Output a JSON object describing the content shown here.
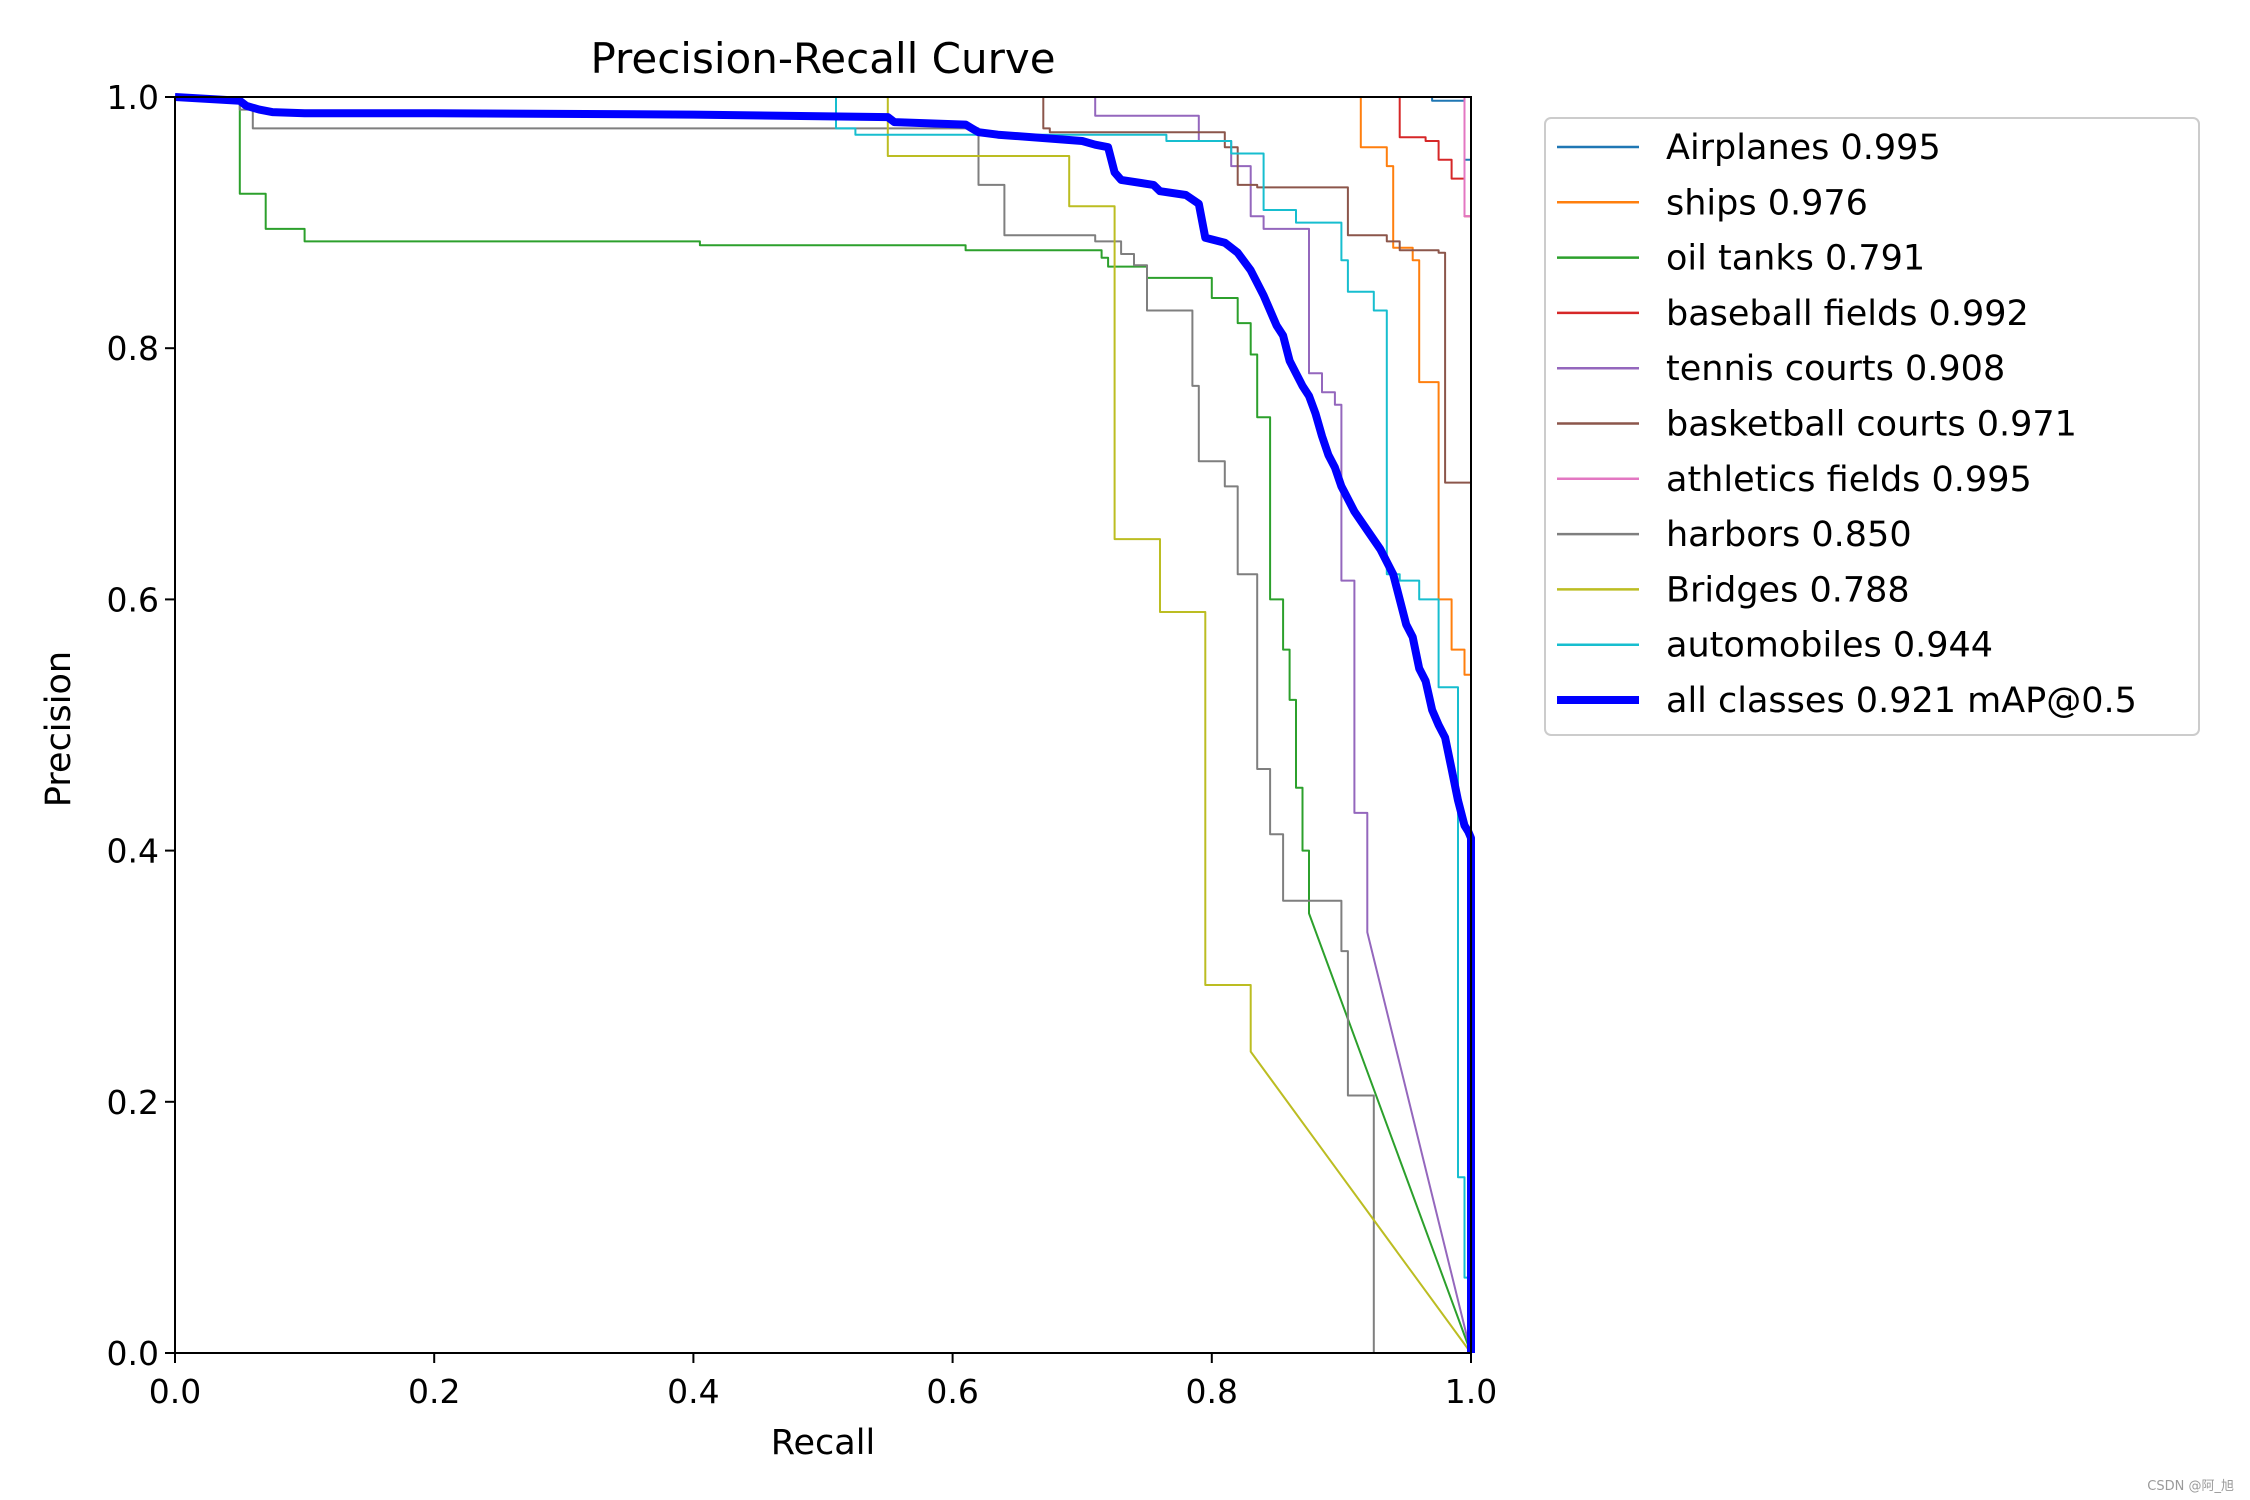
{
  "chart_data": {
    "type": "line",
    "title": "Precision-Recall Curve",
    "xlabel": "Recall",
    "ylabel": "Precision",
    "xlim": [
      0,
      1
    ],
    "ylim": [
      0,
      1
    ],
    "xticks": [
      "0.0",
      "0.2",
      "0.4",
      "0.6",
      "0.8",
      "1.0"
    ],
    "yticks": [
      "0.0",
      "0.2",
      "0.4",
      "0.6",
      "0.8",
      "1.0"
    ],
    "grid": false,
    "legend_position": "outside-right-top",
    "series": [
      {
        "name": "Airplanes",
        "label": "Airplanes 0.995",
        "color": "#1f77b4",
        "emphasis": false,
        "x": [
          0,
          0.97,
          0.97,
          0.995,
          0.995,
          1.0,
          1.0
        ],
        "y": [
          1.0,
          1.0,
          0.997,
          0.997,
          0.95,
          0.95,
          0.0
        ]
      },
      {
        "name": "ships",
        "label": "ships 0.976",
        "color": "#ff7f0e",
        "emphasis": false,
        "x": [
          0,
          0.915,
          0.915,
          0.935,
          0.935,
          0.94,
          0.94,
          0.955,
          0.955,
          0.96,
          0.96,
          0.975,
          0.975,
          0.985,
          0.985,
          0.995,
          0.995,
          1.0,
          1.0
        ],
        "y": [
          1.0,
          1.0,
          0.96,
          0.96,
          0.945,
          0.945,
          0.88,
          0.88,
          0.87,
          0.87,
          0.773,
          0.773,
          0.6,
          0.6,
          0.56,
          0.56,
          0.54,
          0.54,
          0.0
        ]
      },
      {
        "name": "oil tanks",
        "label": "oil tanks 0.791",
        "color": "#2ca02c",
        "emphasis": false,
        "x": [
          0,
          0.05,
          0.05,
          0.07,
          0.07,
          0.1,
          0.1,
          0.405,
          0.405,
          0.61,
          0.61,
          0.715,
          0.715,
          0.72,
          0.72,
          0.75,
          0.75,
          0.8,
          0.8,
          0.82,
          0.82,
          0.83,
          0.83,
          0.835,
          0.835,
          0.845,
          0.845,
          0.855,
          0.855,
          0.86,
          0.86,
          0.865,
          0.865,
          0.87,
          0.87,
          0.875,
          0.875,
          1.0
        ],
        "y": [
          1.0,
          1.0,
          0.923,
          0.923,
          0.895,
          0.895,
          0.885,
          0.885,
          0.882,
          0.882,
          0.878,
          0.878,
          0.872,
          0.872,
          0.865,
          0.865,
          0.856,
          0.856,
          0.84,
          0.84,
          0.82,
          0.82,
          0.795,
          0.795,
          0.745,
          0.745,
          0.6,
          0.6,
          0.56,
          0.56,
          0.52,
          0.52,
          0.45,
          0.45,
          0.4,
          0.4,
          0.35,
          0.0
        ]
      },
      {
        "name": "baseball fields",
        "label": "baseball fields 0.992",
        "color": "#d62728",
        "emphasis": false,
        "x": [
          0,
          0.945,
          0.945,
          0.965,
          0.965,
          0.975,
          0.975,
          0.985,
          0.985,
          0.995,
          0.995,
          1.0,
          1.0
        ],
        "y": [
          1.0,
          1.0,
          0.968,
          0.968,
          0.965,
          0.965,
          0.95,
          0.95,
          0.935,
          0.935,
          0.905,
          0.905,
          0.0
        ]
      },
      {
        "name": "tennis courts",
        "label": "tennis courts 0.908",
        "color": "#9467bd",
        "emphasis": false,
        "x": [
          0,
          0.71,
          0.71,
          0.79,
          0.79,
          0.815,
          0.815,
          0.83,
          0.83,
          0.84,
          0.84,
          0.875,
          0.875,
          0.885,
          0.885,
          0.895,
          0.895,
          0.9,
          0.9,
          0.91,
          0.91,
          0.92,
          0.92,
          1.0
        ],
        "y": [
          1.0,
          1.0,
          0.985,
          0.985,
          0.965,
          0.965,
          0.945,
          0.945,
          0.905,
          0.905,
          0.895,
          0.895,
          0.78,
          0.78,
          0.765,
          0.765,
          0.755,
          0.755,
          0.615,
          0.615,
          0.43,
          0.43,
          0.335,
          0.0
        ]
      },
      {
        "name": "basketball courts",
        "label": "basketball courts 0.971",
        "color": "#8c564b",
        "emphasis": false,
        "x": [
          0,
          0.67,
          0.67,
          0.675,
          0.675,
          0.81,
          0.81,
          0.82,
          0.82,
          0.835,
          0.835,
          0.905,
          0.905,
          0.935,
          0.935,
          0.945,
          0.945,
          0.975,
          0.975,
          0.98,
          0.98,
          1.0,
          1.0
        ],
        "y": [
          1.0,
          1.0,
          0.975,
          0.975,
          0.972,
          0.972,
          0.96,
          0.96,
          0.93,
          0.93,
          0.928,
          0.928,
          0.89,
          0.89,
          0.885,
          0.885,
          0.878,
          0.878,
          0.876,
          0.876,
          0.693,
          0.693,
          0.0
        ]
      },
      {
        "name": "athletics fields",
        "label": "athletics fields 0.995",
        "color": "#e377c2",
        "emphasis": false,
        "x": [
          0,
          0.995,
          0.995,
          1.0,
          1.0
        ],
        "y": [
          1.0,
          1.0,
          0.905,
          0.905,
          0.0
        ]
      },
      {
        "name": "harbors",
        "label": "harbors 0.850",
        "color": "#7f7f7f",
        "emphasis": false,
        "x": [
          0,
          0.05,
          0.05,
          0.06,
          0.06,
          0.62,
          0.62,
          0.64,
          0.64,
          0.71,
          0.71,
          0.73,
          0.73,
          0.74,
          0.74,
          0.75,
          0.75,
          0.785,
          0.785,
          0.79,
          0.79,
          0.81,
          0.81,
          0.82,
          0.82,
          0.835,
          0.835,
          0.845,
          0.845,
          0.855,
          0.855,
          0.9,
          0.9,
          0.905,
          0.905,
          0.925,
          0.925,
          0.935,
          0.935,
          0.94,
          0.94,
          0.955,
          0.955,
          0.95,
          1.0
        ],
        "y": [
          1.0,
          1.0,
          0.99,
          0.99,
          0.975,
          0.975,
          0.93,
          0.93,
          0.89,
          0.89,
          0.885,
          0.885,
          0.875,
          0.875,
          0.866,
          0.866,
          0.83,
          0.83,
          0.77,
          0.77,
          0.71,
          0.71,
          0.69,
          0.69,
          0.62,
          0.62,
          0.465,
          0.465,
          0.413,
          0.413,
          0.36,
          0.36,
          0.32,
          0.32,
          0.205,
          0.205,
          0.0,
          0.0,
          0.0,
          0.0,
          0.0,
          0.0,
          0.0,
          0.0,
          0.0
        ]
      },
      {
        "name": "Bridges",
        "label": "Bridges 0.788",
        "color": "#bcbd22",
        "emphasis": false,
        "x": [
          0,
          0.55,
          0.55,
          0.69,
          0.69,
          0.725,
          0.725,
          0.76,
          0.76,
          0.795,
          0.795,
          0.83,
          0.83,
          1.0
        ],
        "y": [
          1.0,
          1.0,
          0.953,
          0.953,
          0.913,
          0.913,
          0.648,
          0.648,
          0.59,
          0.59,
          0.293,
          0.293,
          0.24,
          0.0
        ]
      },
      {
        "name": "automobiles",
        "label": "automobiles 0.944",
        "color": "#17becf",
        "emphasis": false,
        "x": [
          0,
          0.51,
          0.51,
          0.525,
          0.525,
          0.765,
          0.765,
          0.815,
          0.815,
          0.84,
          0.84,
          0.865,
          0.865,
          0.9,
          0.9,
          0.905,
          0.905,
          0.925,
          0.925,
          0.935,
          0.935,
          0.945,
          0.945,
          0.96,
          0.96,
          0.975,
          0.975,
          0.99,
          0.99,
          0.995,
          0.995,
          1.0,
          1.0
        ],
        "y": [
          1.0,
          1.0,
          0.975,
          0.975,
          0.97,
          0.97,
          0.965,
          0.965,
          0.955,
          0.955,
          0.91,
          0.91,
          0.9,
          0.9,
          0.87,
          0.87,
          0.845,
          0.845,
          0.83,
          0.83,
          0.62,
          0.62,
          0.615,
          0.615,
          0.6,
          0.6,
          0.53,
          0.53,
          0.14,
          0.14,
          0.06,
          0.06,
          0.0
        ]
      },
      {
        "name": "all classes",
        "label": "all classes 0.921 mAP@0.5",
        "color": "#0000ff",
        "emphasis": true,
        "x": [
          0,
          0.05,
          0.055,
          0.065,
          0.075,
          0.1,
          0.2,
          0.4,
          0.55,
          0.555,
          0.61,
          0.615,
          0.62,
          0.635,
          0.7,
          0.71,
          0.72,
          0.725,
          0.73,
          0.755,
          0.76,
          0.78,
          0.79,
          0.795,
          0.81,
          0.82,
          0.825,
          0.83,
          0.835,
          0.84,
          0.845,
          0.85,
          0.855,
          0.86,
          0.865,
          0.87,
          0.875,
          0.88,
          0.885,
          0.89,
          0.895,
          0.9,
          0.905,
          0.91,
          0.92,
          0.93,
          0.94,
          0.945,
          0.95,
          0.955,
          0.96,
          0.965,
          0.97,
          0.975,
          0.98,
          0.985,
          0.99,
          0.995,
          0.998,
          1.0,
          1.0
        ],
        "y": [
          1.0,
          0.997,
          0.993,
          0.99,
          0.988,
          0.987,
          0.987,
          0.986,
          0.984,
          0.98,
          0.978,
          0.975,
          0.972,
          0.97,
          0.965,
          0.962,
          0.96,
          0.94,
          0.934,
          0.93,
          0.925,
          0.922,
          0.915,
          0.888,
          0.884,
          0.876,
          0.869,
          0.862,
          0.852,
          0.842,
          0.83,
          0.818,
          0.81,
          0.79,
          0.78,
          0.77,
          0.762,
          0.748,
          0.73,
          0.715,
          0.705,
          0.69,
          0.68,
          0.67,
          0.655,
          0.64,
          0.62,
          0.6,
          0.58,
          0.57,
          0.545,
          0.535,
          0.512,
          0.5,
          0.49,
          0.465,
          0.44,
          0.42,
          0.415,
          0.41,
          0.0
        ]
      }
    ]
  },
  "watermark": "CSDN @阿_旭"
}
